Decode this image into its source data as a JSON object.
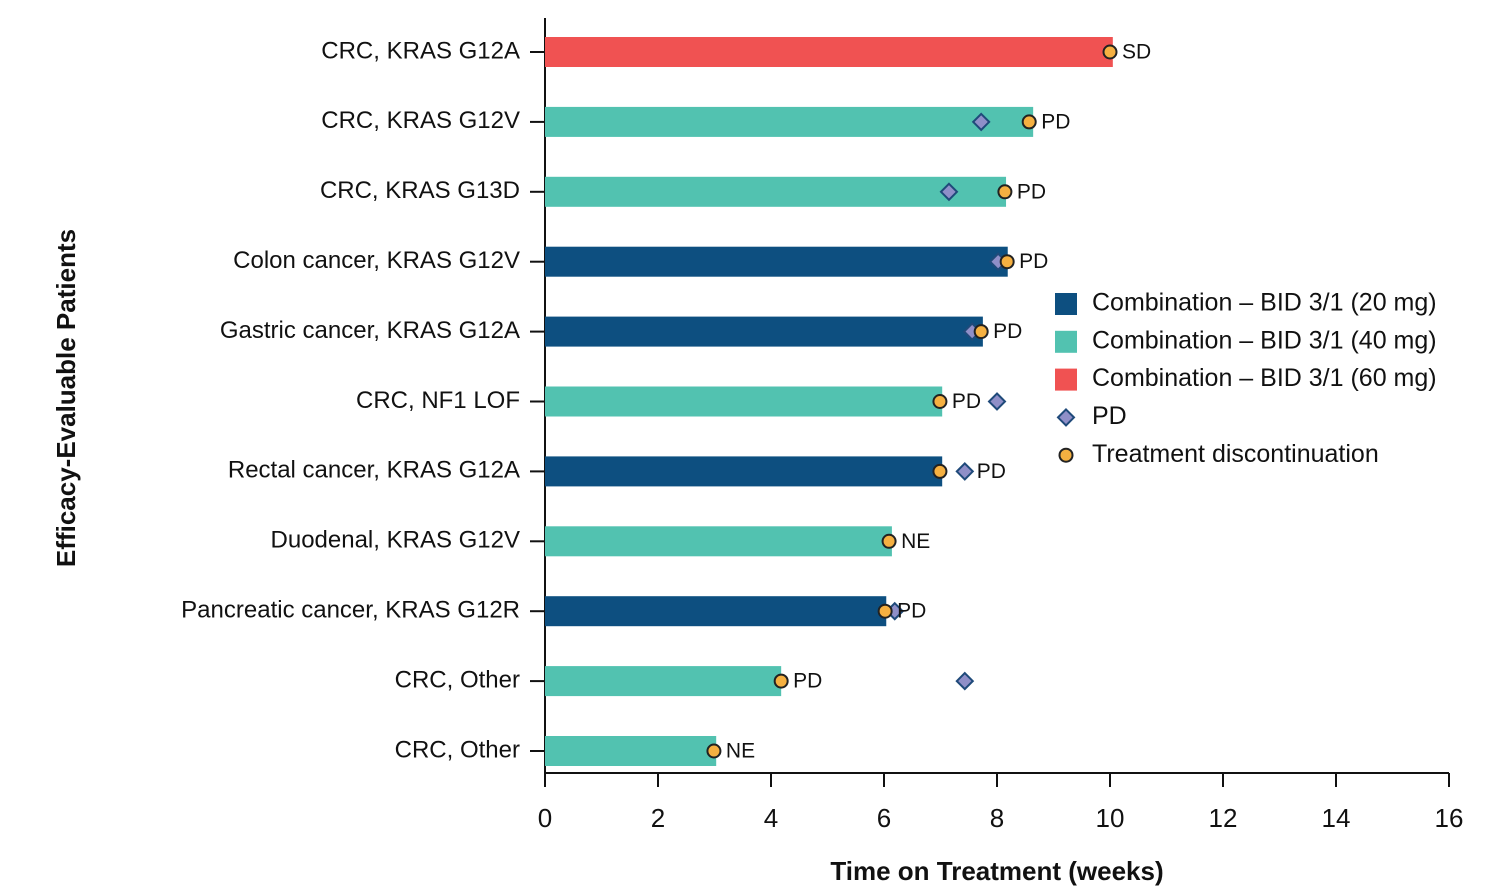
{
  "chart_data": {
    "type": "swimmer",
    "xlabel": "Time on Treatment (weeks)",
    "ylabel": "Efficacy-Evaluable Patients",
    "categories": [
      "CRC, KRAS G12A",
      "CRC, KRAS G12V",
      "CRC, KRAS G13D",
      "Colon cancer, KRAS G12V",
      "Gastric cancer, KRAS G12A",
      "CRC, NF1 LOF",
      "Rectal cancer, KRAS G12A",
      "Duodenal, KRAS G12V",
      "Pancreatic cancer, KRAS G12R",
      "CRC, Other",
      "CRC, Other"
    ],
    "series": [
      {
        "name": "Combination – BID 3/1 (20 mg)",
        "color": "#0d4f80",
        "values": [
          null,
          null,
          null,
          8.19,
          7.75,
          null,
          7.03,
          null,
          6.04,
          null,
          null
        ]
      },
      {
        "name": "Combination – BID 3/1 (40 mg)",
        "color": "#52c2b0",
        "values": [
          null,
          8.64,
          8.16,
          null,
          null,
          7.03,
          null,
          6.14,
          null,
          4.18,
          3.03
        ]
      },
      {
        "name": "Combination – BID 3/1 (60 mg)",
        "color": "#f05252",
        "values": [
          10.05,
          null,
          null,
          null,
          null,
          null,
          null,
          null,
          null,
          null,
          null
        ]
      }
    ],
    "pd": {
      "name": "PD",
      "color": "#8f8fc8",
      "values": [
        null,
        7.72,
        7.15,
        8.02,
        7.56,
        8.0,
        7.43,
        null,
        6.19,
        7.43,
        null
      ]
    },
    "discontinuation": {
      "name": "Treatment discontinuation",
      "color": "#f5b041",
      "values": [
        10.0,
        8.57,
        8.14,
        8.18,
        7.72,
        6.99,
        6.99,
        6.09,
        6.02,
        4.18,
        2.99
      ]
    },
    "annotations": [
      "SD",
      "PD",
      "PD",
      "PD",
      "PD",
      "PD",
      "PD",
      "NE",
      "PD",
      "PD",
      "NE"
    ],
    "xlim": [
      0,
      16
    ],
    "xticks": [
      0,
      2,
      4,
      6,
      8,
      10,
      12,
      14,
      16
    ],
    "legend": "right"
  }
}
